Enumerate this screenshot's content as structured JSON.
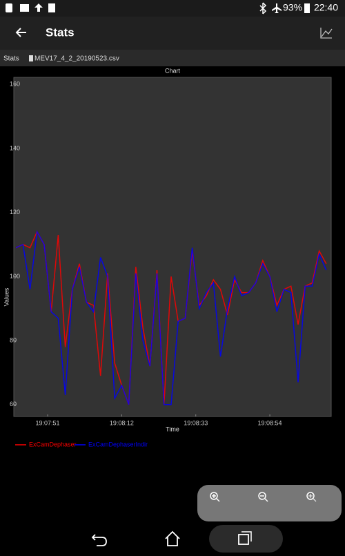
{
  "status_bar": {
    "battery": "93%",
    "time": "22:40"
  },
  "app_bar": {
    "title": "Stats"
  },
  "breadcrumb": {
    "section": "Stats",
    "file": "MEV17_4_2_20190523.csv"
  },
  "chart_data": {
    "type": "line",
    "title": "Chart",
    "x_label": "Time",
    "y_label": "Values",
    "x": [
      68862,
      68864,
      68866,
      68868,
      68870,
      68872,
      68874,
      68876,
      68878,
      68880,
      68882,
      68884,
      68886,
      68888,
      68890,
      68892,
      68894,
      68896,
      68898,
      68900,
      68902,
      68904,
      68906,
      68908,
      68910,
      68912,
      68914,
      68916,
      68918,
      68920,
      68922,
      68924,
      68926,
      68928,
      68930,
      68932,
      68934,
      68936,
      68938,
      68940,
      68942,
      68944,
      68946,
      68948,
      68950
    ],
    "xlim": [
      68861.4,
      68951.4
    ],
    "xticks": [
      {
        "value": 68871,
        "label": "19:07:51"
      },
      {
        "value": 68892,
        "label": "19:08:12"
      },
      {
        "value": 68913,
        "label": "19:08:33"
      },
      {
        "value": 68934,
        "label": "19:08:54"
      }
    ],
    "ylim": [
      56.3,
      162.2
    ],
    "yticks": [
      60,
      80,
      100,
      120,
      140,
      160
    ],
    "grid": false,
    "series": [
      {
        "name": "ExCamDephaser",
        "color": "#ff0000",
        "values": [
          109,
          110,
          109,
          114,
          110,
          89,
          113,
          78,
          96,
          104,
          92,
          91,
          69,
          101,
          73,
          66,
          60,
          103,
          84,
          72,
          102,
          60,
          100,
          86,
          87,
          108,
          91,
          94,
          99,
          96,
          88,
          99,
          95,
          95,
          98,
          105,
          100,
          91,
          96,
          97,
          85,
          97,
          98,
          108,
          104
        ]
      },
      {
        "name": "ExCamDephaserIndir",
        "color": "#0000ff",
        "values": [
          109,
          110,
          96,
          114,
          110,
          89,
          87,
          63,
          96,
          103,
          92,
          89,
          106,
          100,
          62,
          66,
          60,
          101,
          80,
          72,
          101,
          60,
          60,
          86,
          87,
          109,
          90,
          95,
          98,
          75,
          90,
          100,
          94,
          95,
          98,
          104,
          100,
          89,
          96,
          95,
          67,
          97,
          97,
          107,
          102
        ]
      }
    ]
  }
}
